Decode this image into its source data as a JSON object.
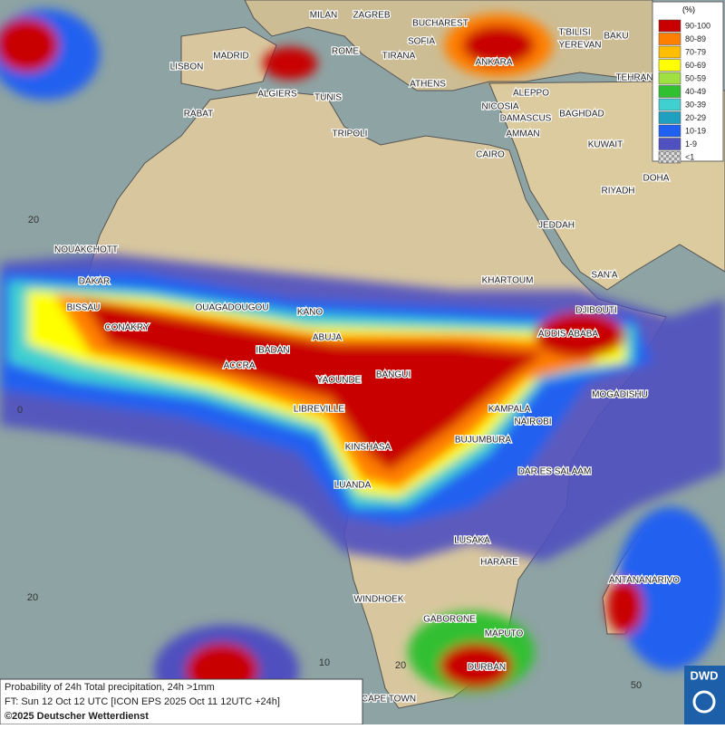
{
  "legend": {
    "title": "(%)",
    "items": [
      {
        "label": "90-100",
        "color": "#c80000"
      },
      {
        "label": "80-89",
        "color": "#ff7f00"
      },
      {
        "label": "70-79",
        "color": "#ffbf00"
      },
      {
        "label": "60-69",
        "color": "#ffff00"
      },
      {
        "label": "50-59",
        "color": "#a0e040"
      },
      {
        "label": "40-49",
        "color": "#30c030"
      },
      {
        "label": "30-39",
        "color": "#40d0d0"
      },
      {
        "label": "20-29",
        "color": "#20a0c0"
      },
      {
        "label": "10-19",
        "color": "#2060f0"
      },
      {
        "label": "1-9",
        "color": "#5050c0"
      },
      {
        "label": "<1",
        "color": "#b0b0b0"
      }
    ]
  },
  "cities": [
    "MILAN",
    "ZAGREB",
    "BUCHAREST",
    "T'BILISI",
    "BAKU",
    "SOFIA",
    "ROME",
    "TIRANA",
    "YEREVAN",
    "MADRID",
    "LISBON",
    "ANKARA",
    "TEHRAN",
    "ATHENS",
    "ALGIERS",
    "TUNIS",
    "ALEPPO",
    "RABAT",
    "NICOSIA",
    "BAGHDAD",
    "TRIPOLI",
    "DAMASCUS",
    "AMMAN",
    "KUWAIT",
    "CAIRO",
    "DOHA",
    "RIYADH",
    "JEDDAH",
    "NOUAKCHOTT",
    "SAN'A",
    "KHARTOUM",
    "DAKAR",
    "BISSAU",
    "DJIBOUTI",
    "OUAGADOUGOU",
    "KANO",
    "CONAKRY",
    "ABUJA",
    "ADDIS ABABA",
    "IBADAN",
    "ACCRA",
    "BANGUI",
    "MOGADISHU",
    "YAOUNDE",
    "LIBREVILLE",
    "KAMPALA",
    "NAIROBI",
    "KINSHASA",
    "BUJUMBURA",
    "DAR ES SALAAM",
    "LUANDA",
    "LUSAKA",
    "HARARE",
    "ANTANANARIVO",
    "WINDHOEK",
    "GABORONE",
    "MAPUTO",
    "DURBAN",
    "CAPE TOWN"
  ],
  "grid_labels": [
    "20",
    "0",
    "20",
    "10",
    "20",
    "50"
  ],
  "footer": {
    "line1": "Probability of 24h Total precipitation, 24h >1mm",
    "line2": "FT: Sun 12 Oct 12 UTC [ICON EPS 2025 Oct 11 12UTC +24h]",
    "line3": "©2025 Deutscher Wetterdienst"
  },
  "logo": "DWD"
}
